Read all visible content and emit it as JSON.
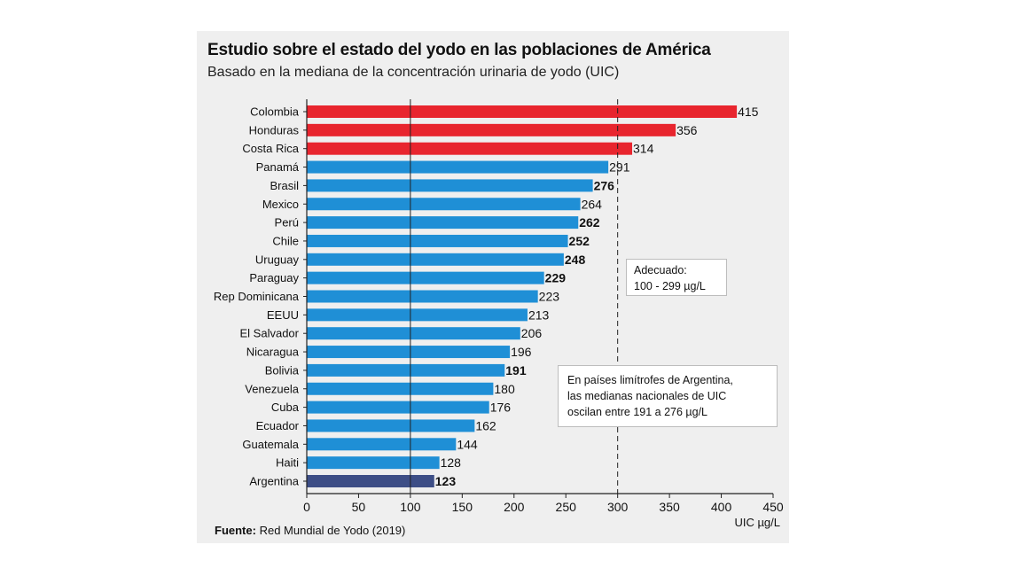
{
  "title": "Estudio sobre el estado del yodo en las poblaciones de América",
  "subtitle": "Basado en la mediana de la concentración urinaria de yodo (UIC)",
  "notes": {
    "adecuado": [
      "Adecuado:",
      "100 - 299 µg/L"
    ],
    "limitrofes": [
      "En países limítrofes de Argentina,",
      "las medianas nacionales de UIC",
      "oscilan entre 191 a 276 µg/L"
    ]
  },
  "source": {
    "label": "Fuente:",
    "text": "Red Mundial de Yodo (2019)"
  },
  "colors": {
    "above": "#e8252e",
    "adequate": "#1f8fd6",
    "argentina": "#3d4e86",
    "background": "#efefef",
    "axis": "#222222"
  },
  "chart_data": {
    "type": "bar",
    "orientation": "horizontal",
    "categories": [
      "Colombia",
      "Honduras",
      "Costa Rica",
      "Panamá",
      "Brasil",
      "Mexico",
      "Perú",
      "Chile",
      "Uruguay",
      "Paraguay",
      "Rep Dominicana",
      "EEUU",
      "El Salvador",
      "Nicaragua",
      "Bolivia",
      "Venezuela",
      "Cuba",
      "Ecuador",
      "Guatemala",
      "Haiti",
      "Argentina"
    ],
    "values": [
      415,
      356,
      314,
      291,
      276,
      264,
      262,
      252,
      248,
      229,
      223,
      213,
      206,
      196,
      191,
      180,
      176,
      162,
      144,
      128,
      123
    ],
    "value_labels": [
      "415",
      "356",
      "314",
      "291",
      "276",
      "264",
      "262",
      "252",
      "248",
      "229",
      "223",
      "213",
      "206",
      "196",
      "191",
      "180",
      "176",
      "162",
      "144",
      "128",
      "123"
    ],
    "bold_labels": [
      false,
      false,
      false,
      false,
      true,
      false,
      true,
      true,
      true,
      true,
      false,
      false,
      false,
      false,
      true,
      false,
      false,
      false,
      false,
      false,
      true
    ],
    "bar_groups": [
      "above",
      "above",
      "above",
      "adequate",
      "adequate",
      "adequate",
      "adequate",
      "adequate",
      "adequate",
      "adequate",
      "adequate",
      "adequate",
      "adequate",
      "adequate",
      "adequate",
      "adequate",
      "adequate",
      "adequate",
      "adequate",
      "adequate",
      "argentina"
    ],
    "x_ticks": [
      0,
      50,
      100,
      150,
      200,
      250,
      300,
      350,
      400,
      450
    ],
    "x_tick_labels": [
      "0",
      "50",
      "100",
      "150",
      "200",
      "250",
      "300",
      "350",
      "400",
      "450"
    ],
    "xlim": [
      0,
      450
    ],
    "xlabel": "UIC µg/L",
    "reference_lines": [
      100,
      300
    ],
    "grid": false
  }
}
